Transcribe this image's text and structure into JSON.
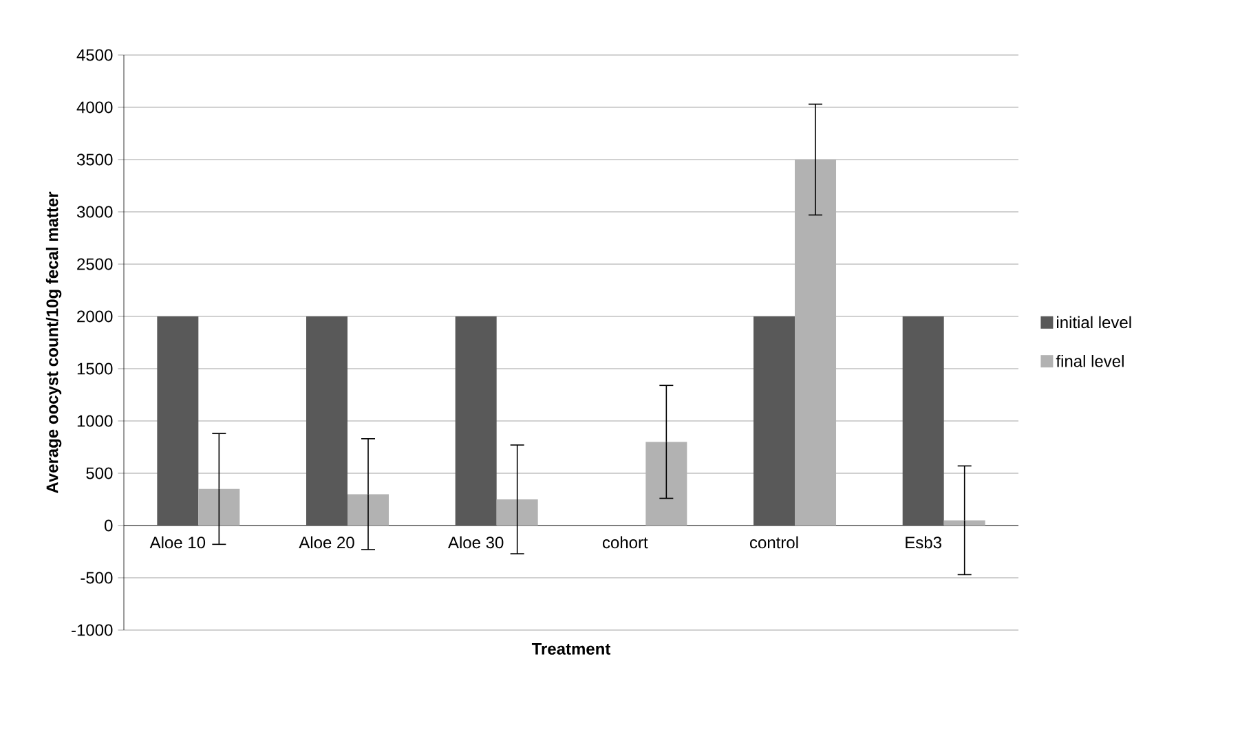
{
  "chart_data": {
    "type": "bar",
    "xlabel": "Treatment",
    "ylabel": "Average oocyst count/10g fecal matter",
    "categories": [
      "Aloe 10",
      "Aloe 20",
      "Aloe 30",
      "cohort",
      "control",
      "Esb3"
    ],
    "series": [
      {
        "name": "initial level",
        "color": "#595959",
        "values": [
          2000,
          2000,
          2000,
          null,
          2000,
          2000
        ]
      },
      {
        "name": "final level",
        "color": "#b2b2b2",
        "values": [
          350,
          300,
          250,
          800,
          3500,
          50
        ],
        "errors": [
          530,
          530,
          520,
          540,
          530,
          520
        ]
      }
    ],
    "ylim": [
      -1000,
      4500
    ],
    "yticks": [
      -1000,
      -500,
      0,
      500,
      1000,
      1500,
      2000,
      2500,
      3000,
      3500,
      4000,
      4500
    ],
    "grid": "y",
    "legend": "right"
  }
}
